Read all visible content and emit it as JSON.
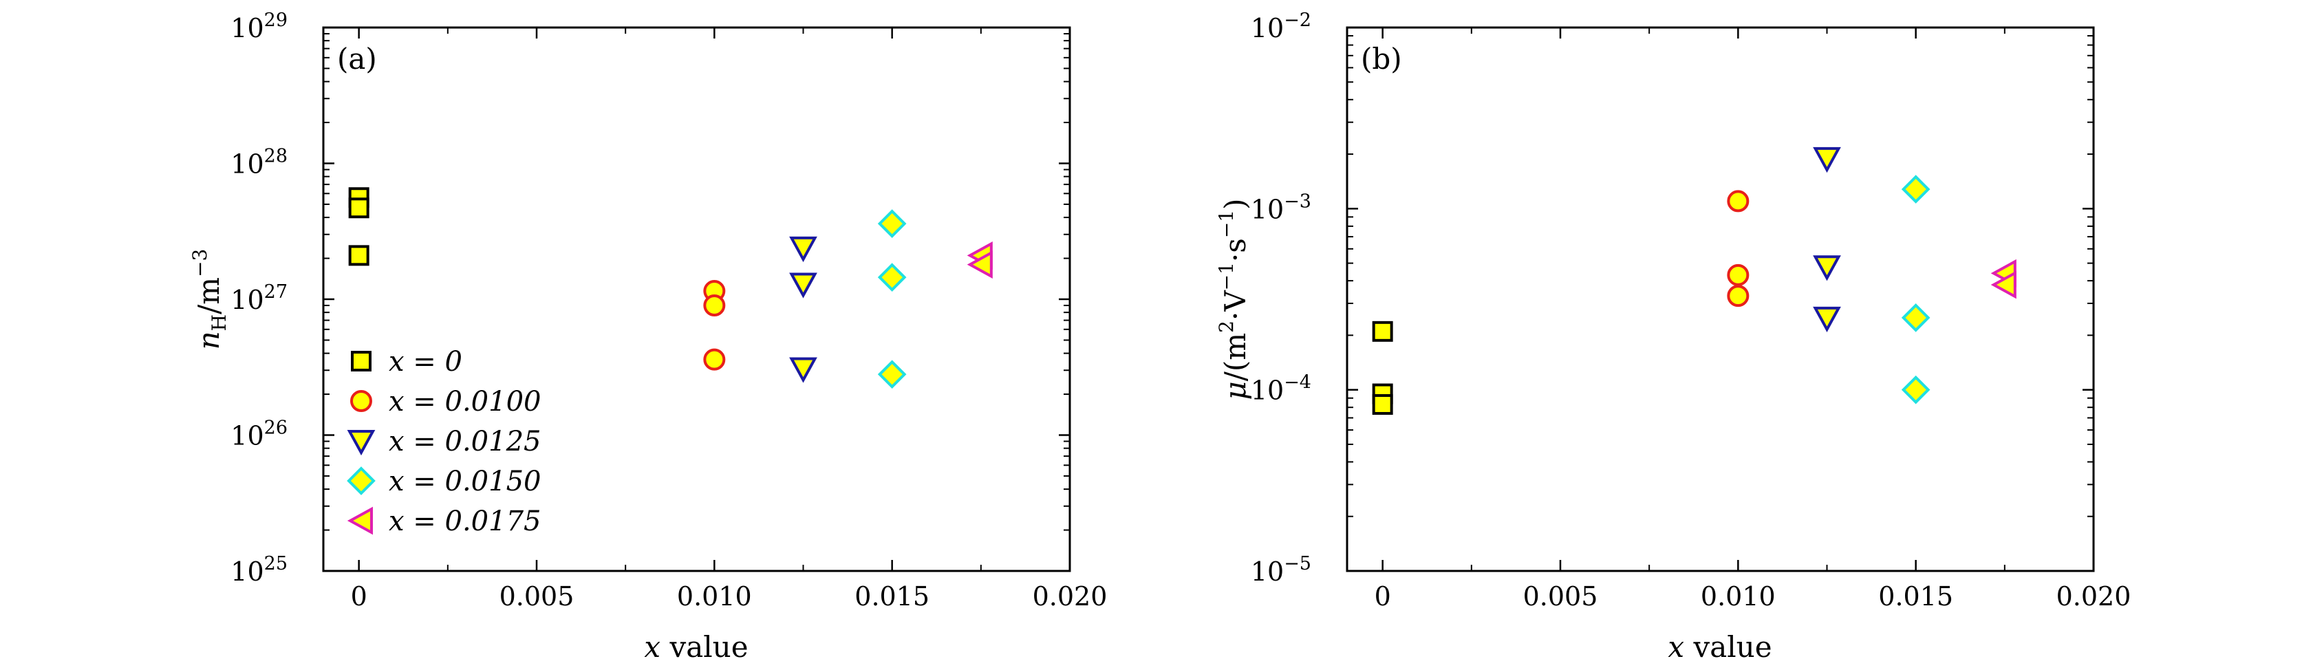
{
  "figure": {
    "legend_entries": [
      "x = 0",
      "x = 0.0100",
      "x = 0.0125",
      "x = 0.0150",
      "x = 0.0175"
    ],
    "marker_fill": "#ffff00",
    "series_colors": {
      "x = 0": "#000000",
      "x = 0.0100": "#e8201a",
      "x = 0.0125": "#1a1aa0",
      "x = 0.0150": "#20e0e0",
      "x = 0.0175": "#e020b0"
    },
    "series_markers": {
      "x = 0": "square",
      "x = 0.0100": "circle",
      "x = 0.0125": "triangle-down",
      "x = 0.0150": "diamond",
      "x = 0.0175": "triangle-left"
    }
  },
  "chart_data": [
    {
      "type": "scatter",
      "panel_label": "(a)",
      "xlabel": "x value",
      "ylabel": "nH/m−3",
      "xlim": [
        -0.001,
        0.02
      ],
      "xticks": [
        0,
        0.005,
        0.01,
        0.015,
        0.02
      ],
      "xtick_labels": [
        "0",
        "0.005",
        "0.010",
        "0.015",
        "0.020"
      ],
      "yscale": "log",
      "ylim": [
        1e+25,
        1e+29
      ],
      "yticks": [
        1e+25,
        1e+26,
        1e+27,
        1e+28,
        1e+29
      ],
      "ytick_labels": [
        "10^25",
        "10^26",
        "10^27",
        "10^28",
        "10^29"
      ],
      "legend_position": "lower-left",
      "series": [
        {
          "name": "x = 0",
          "x": [
            0,
            0,
            0
          ],
          "y": [
            5.6e+27,
            4.7e+27,
            2.1e+27
          ]
        },
        {
          "name": "x = 0.0100",
          "x": [
            0.01,
            0.01,
            0.01
          ],
          "y": [
            1.15e+27,
            9e+26,
            3.6e+26
          ]
        },
        {
          "name": "x = 0.0125",
          "x": [
            0.0125,
            0.0125,
            0.0125
          ],
          "y": [
            2.4e+27,
            1.3e+27,
            3.1e+26
          ]
        },
        {
          "name": "x = 0.0150",
          "x": [
            0.015,
            0.015,
            0.015
          ],
          "y": [
            3.6e+27,
            1.45e+27,
            2.8e+26
          ]
        },
        {
          "name": "x = 0.0175",
          "x": [
            0.0175,
            0.0175
          ],
          "y": [
            2.1e+27,
            1.8e+27
          ]
        }
      ]
    },
    {
      "type": "scatter",
      "panel_label": "(b)",
      "xlabel": "x value",
      "ylabel": "μ/(m2·V−1·s−1)",
      "xlim": [
        -0.001,
        0.02
      ],
      "xticks": [
        0,
        0.005,
        0.01,
        0.015,
        0.02
      ],
      "xtick_labels": [
        "0",
        "0.005",
        "0.010",
        "0.015",
        "0.020"
      ],
      "yscale": "log",
      "ylim": [
        1e-05,
        0.01
      ],
      "yticks": [
        1e-05,
        0.0001,
        0.001,
        0.01
      ],
      "ytick_labels": [
        "10^−5",
        "10^−4",
        "10^−3",
        "10^−2"
      ],
      "series": [
        {
          "name": "x = 0",
          "x": [
            0,
            0,
            0
          ],
          "y": [
            0.00021,
            9.5e-05,
            8.3e-05
          ]
        },
        {
          "name": "x = 0.0100",
          "x": [
            0.01,
            0.01,
            0.01
          ],
          "y": [
            0.0011,
            0.00043,
            0.00033
          ]
        },
        {
          "name": "x = 0.0125",
          "x": [
            0.0125,
            0.0125,
            0.0125
          ],
          "y": [
            0.0019,
            0.00048,
            0.00025
          ]
        },
        {
          "name": "x = 0.0150",
          "x": [
            0.015,
            0.015,
            0.015
          ],
          "y": [
            0.00128,
            0.00025,
            0.0001
          ]
        },
        {
          "name": "x = 0.0175",
          "x": [
            0.0175,
            0.0175
          ],
          "y": [
            0.00044,
            0.00038
          ]
        }
      ]
    }
  ]
}
